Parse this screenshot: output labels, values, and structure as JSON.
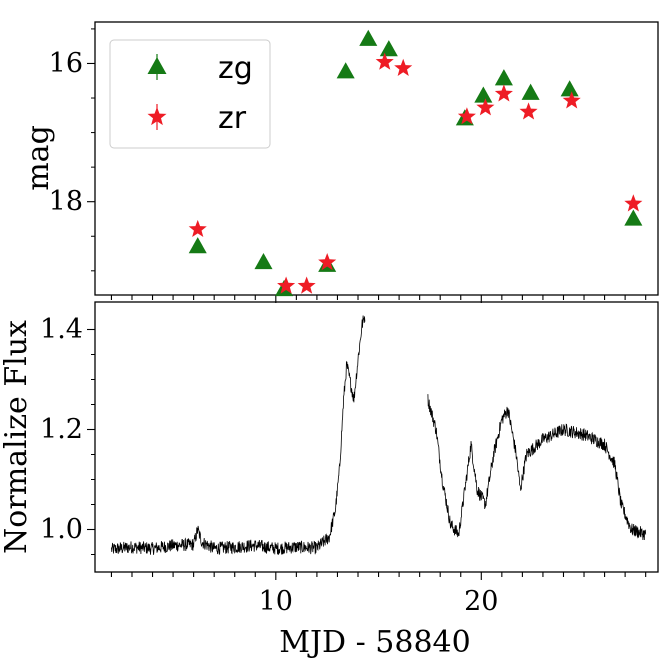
{
  "chart_data": [
    {
      "type": "scatter",
      "title": "",
      "xlabel": "",
      "ylabel": "mag",
      "xlim": [
        1.2,
        28.6
      ],
      "ylim": [
        19.35,
        15.4
      ],
      "y_inverted": true,
      "yticks": [
        16,
        18
      ],
      "legend": {
        "placement": "top-left"
      },
      "grid": false,
      "series": [
        {
          "name": "zg",
          "marker": "triangle",
          "color": "#157a15",
          "points": [
            [
              6.2,
              18.65
            ],
            [
              9.4,
              18.88
            ],
            [
              10.4,
              19.27
            ],
            [
              12.5,
              18.92
            ],
            [
              13.4,
              16.12
            ],
            [
              14.5,
              15.65
            ],
            [
              15.5,
              15.8
            ],
            [
              19.2,
              16.8
            ],
            [
              20.1,
              16.47
            ],
            [
              21.1,
              16.22
            ],
            [
              22.4,
              16.43
            ],
            [
              24.3,
              16.38
            ],
            [
              27.4,
              18.25
            ]
          ]
        },
        {
          "name": "zr",
          "marker": "star",
          "color": "#ee1c25",
          "points": [
            [
              6.2,
              18.4
            ],
            [
              10.5,
              19.22
            ],
            [
              11.5,
              19.22
            ],
            [
              12.5,
              18.88
            ],
            [
              15.3,
              15.98
            ],
            [
              16.2,
              16.07
            ],
            [
              19.3,
              16.77
            ],
            [
              20.2,
              16.64
            ],
            [
              21.1,
              16.44
            ],
            [
              22.3,
              16.7
            ],
            [
              24.4,
              16.54
            ],
            [
              27.4,
              18.03
            ]
          ]
        }
      ]
    },
    {
      "type": "line",
      "title": "",
      "xlabel": "MJD - 58840",
      "ylabel": "Normalize Flux",
      "xlim": [
        1.2,
        28.6
      ],
      "ylim": [
        0.915,
        1.455
      ],
      "xticks": [
        10,
        20
      ],
      "yticks": [
        1.0,
        1.2,
        1.4
      ],
      "grid": false,
      "series": [
        {
          "name": "",
          "color": "#000000",
          "points": [
            [
              2.0,
              0.96
            ],
            [
              3.0,
              0.965
            ],
            [
              4.0,
              0.962
            ],
            [
              5.0,
              0.968
            ],
            [
              6.0,
              0.97
            ],
            [
              6.2,
              1.0
            ],
            [
              6.4,
              0.975
            ],
            [
              7.0,
              0.962
            ],
            [
              8.0,
              0.965
            ],
            [
              9.0,
              0.968
            ],
            [
              10.0,
              0.962
            ],
            [
              11.0,
              0.965
            ],
            [
              12.0,
              0.963
            ],
            [
              12.6,
              0.985
            ],
            [
              12.9,
              1.04
            ],
            [
              13.1,
              1.12
            ],
            [
              13.3,
              1.26
            ],
            [
              13.45,
              1.33
            ],
            [
              13.6,
              1.3
            ],
            [
              13.8,
              1.26
            ],
            [
              14.0,
              1.34
            ],
            [
              14.2,
              1.41
            ],
            [
              14.35,
              1.43
            ],
            [
              17.4,
              1.26
            ],
            [
              17.8,
              1.2
            ],
            [
              18.1,
              1.1
            ],
            [
              18.5,
              1.01
            ],
            [
              18.9,
              0.99
            ],
            [
              19.2,
              1.08
            ],
            [
              19.5,
              1.17
            ],
            [
              19.8,
              1.08
            ],
            [
              20.2,
              1.05
            ],
            [
              20.6,
              1.15
            ],
            [
              21.0,
              1.22
            ],
            [
              21.3,
              1.24
            ],
            [
              21.7,
              1.15
            ],
            [
              21.9,
              1.08
            ],
            [
              22.2,
              1.15
            ],
            [
              23.0,
              1.18
            ],
            [
              24.0,
              1.2
            ],
            [
              25.0,
              1.19
            ],
            [
              26.0,
              1.17
            ],
            [
              26.5,
              1.13
            ],
            [
              26.8,
              1.05
            ],
            [
              27.3,
              1.0
            ],
            [
              28.0,
              0.99
            ]
          ],
          "gaps": [
            [
              14.4,
              17.3
            ]
          ]
        }
      ]
    }
  ]
}
